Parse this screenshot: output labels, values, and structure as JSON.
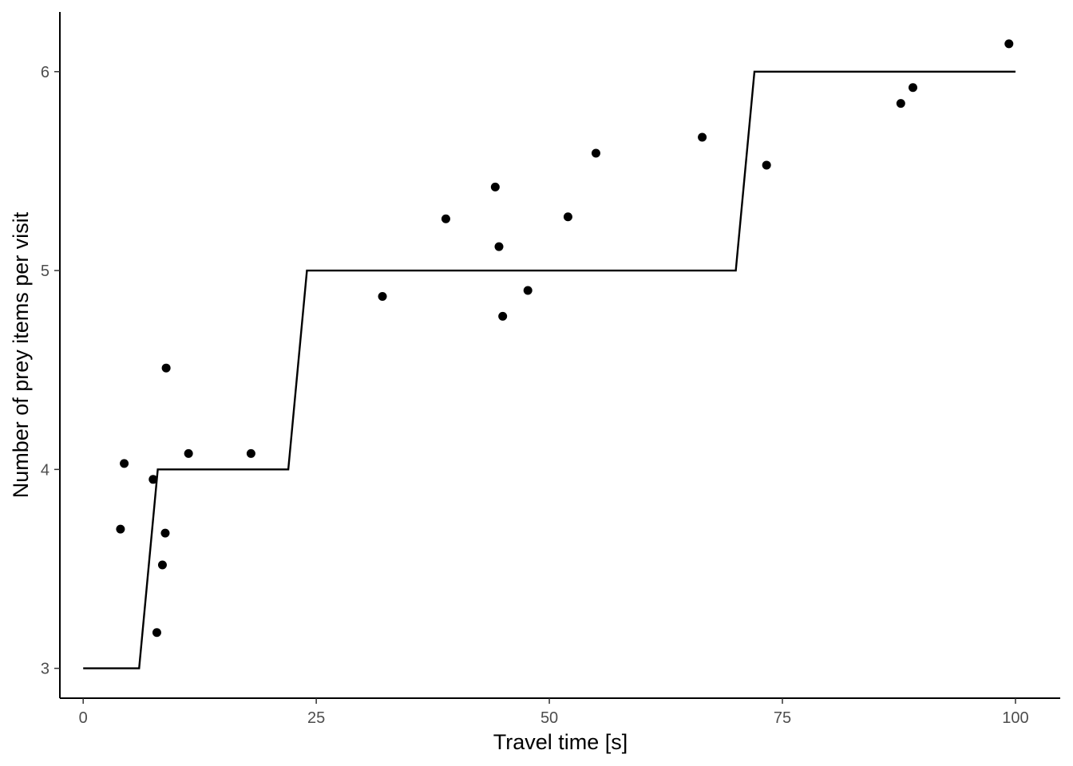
{
  "chart_data": {
    "type": "scatter",
    "title": "",
    "xlabel": "Travel time [s]",
    "ylabel": "Number of prey items per visit",
    "xlim": [
      -2.5,
      104.8
    ],
    "ylim": [
      2.85,
      6.3
    ],
    "x_ticks": [
      0,
      25,
      50,
      75,
      100
    ],
    "y_ticks": [
      3,
      4,
      5,
      6
    ],
    "grid": false,
    "legend": "none",
    "colors": {
      "points": "#000000",
      "line": "#000000",
      "axis": "#000000",
      "tick_label": "#4d4d4d"
    },
    "points": [
      {
        "x": 4.0,
        "y": 3.7
      },
      {
        "x": 4.4,
        "y": 4.03
      },
      {
        "x": 7.5,
        "y": 3.95
      },
      {
        "x": 7.9,
        "y": 3.18
      },
      {
        "x": 8.5,
        "y": 3.52
      },
      {
        "x": 8.8,
        "y": 3.68
      },
      {
        "x": 8.9,
        "y": 4.51
      },
      {
        "x": 11.3,
        "y": 4.08
      },
      {
        "x": 18.0,
        "y": 4.08
      },
      {
        "x": 32.1,
        "y": 4.87
      },
      {
        "x": 38.9,
        "y": 5.26
      },
      {
        "x": 44.2,
        "y": 5.42
      },
      {
        "x": 44.6,
        "y": 5.12
      },
      {
        "x": 45.0,
        "y": 4.77
      },
      {
        "x": 47.7,
        "y": 4.9
      },
      {
        "x": 52.0,
        "y": 5.27
      },
      {
        "x": 55.0,
        "y": 5.59
      },
      {
        "x": 66.4,
        "y": 5.67
      },
      {
        "x": 73.3,
        "y": 5.53
      },
      {
        "x": 87.7,
        "y": 5.84
      },
      {
        "x": 89.0,
        "y": 5.92
      },
      {
        "x": 99.3,
        "y": 6.14
      }
    ],
    "step_line": [
      {
        "x": 0,
        "y": 3
      },
      {
        "x": 6,
        "y": 3
      },
      {
        "x": 8,
        "y": 4
      },
      {
        "x": 22,
        "y": 4
      },
      {
        "x": 24,
        "y": 5
      },
      {
        "x": 70,
        "y": 5
      },
      {
        "x": 72,
        "y": 6
      },
      {
        "x": 100,
        "y": 6
      }
    ]
  }
}
